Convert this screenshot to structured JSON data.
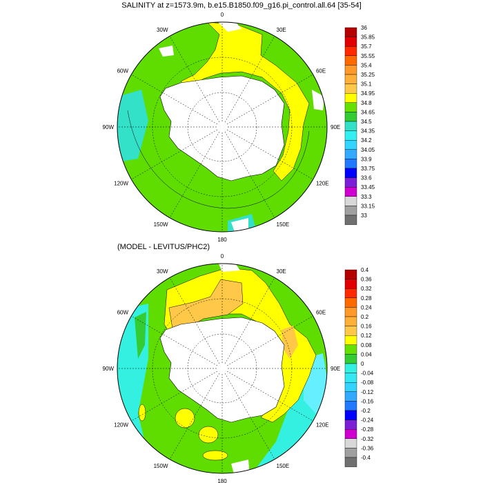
{
  "panels": [
    {
      "title": "SALINITY at z=1573.9m, b.e15.B1850.f09_g16.pi_control.all.64 [35-54]",
      "lon_labels": [
        "0",
        "30E",
        "60E",
        "90E",
        "120E",
        "150E",
        "180",
        "150W",
        "120W",
        "90W",
        "60W",
        "30W"
      ],
      "colorbar": {
        "labels": [
          "36",
          "35.85",
          "35.7",
          "35.55",
          "35.4",
          "35.25",
          "35.1",
          "34.95",
          "34.8",
          "34.65",
          "34.5",
          "34.35",
          "34.2",
          "34.05",
          "33.9",
          "33.75",
          "33.6",
          "33.45",
          "33.3",
          "33.15",
          "33"
        ],
        "colors": [
          "#b50000",
          "#e00000",
          "#ff2a00",
          "#ff6a00",
          "#ff9a2a",
          "#ffb038",
          "#ffc848",
          "#ffff00",
          "#66e000",
          "#33cc33",
          "#33e0c8",
          "#33f0f0",
          "#33d4ff",
          "#33aaff",
          "#1f7aff",
          "#0000ff",
          "#7a1fd6",
          "#d000d0",
          "#d8d8d8",
          "#a0a0a0",
          "#707070"
        ]
      }
    },
    {
      "title": "(MODEL - LEVITUS/PHC2)",
      "lon_labels": [
        "0",
        "30E",
        "60E",
        "90E",
        "120E",
        "150E",
        "180",
        "150W",
        "120W",
        "90W",
        "60W",
        "30W"
      ],
      "colorbar": {
        "labels": [
          "0.4",
          "0.36",
          "0.32",
          "0.28",
          "0.24",
          "0.2",
          "0.16",
          "0.12",
          "0.08",
          "0.04",
          "0",
          "-0.04",
          "-0.08",
          "-0.12",
          "-0.16",
          "-0.2",
          "-0.24",
          "-0.28",
          "-0.32",
          "-0.36",
          "-0.4"
        ],
        "colors": [
          "#b50000",
          "#e00000",
          "#ff2a00",
          "#ff6a00",
          "#ff9a2a",
          "#ffb038",
          "#ffc848",
          "#ffff00",
          "#66e000",
          "#33cc33",
          "#33f0e0",
          "#33e8f0",
          "#33d4ff",
          "#33aaff",
          "#1f7aff",
          "#0000ff",
          "#7a1fd6",
          "#d000d0",
          "#d8d8d8",
          "#a0a0a0",
          "#707070"
        ]
      }
    }
  ],
  "colors": {
    "ocean_main": "#5fdc00",
    "land": "#ffffff",
    "coast": "#000000"
  }
}
